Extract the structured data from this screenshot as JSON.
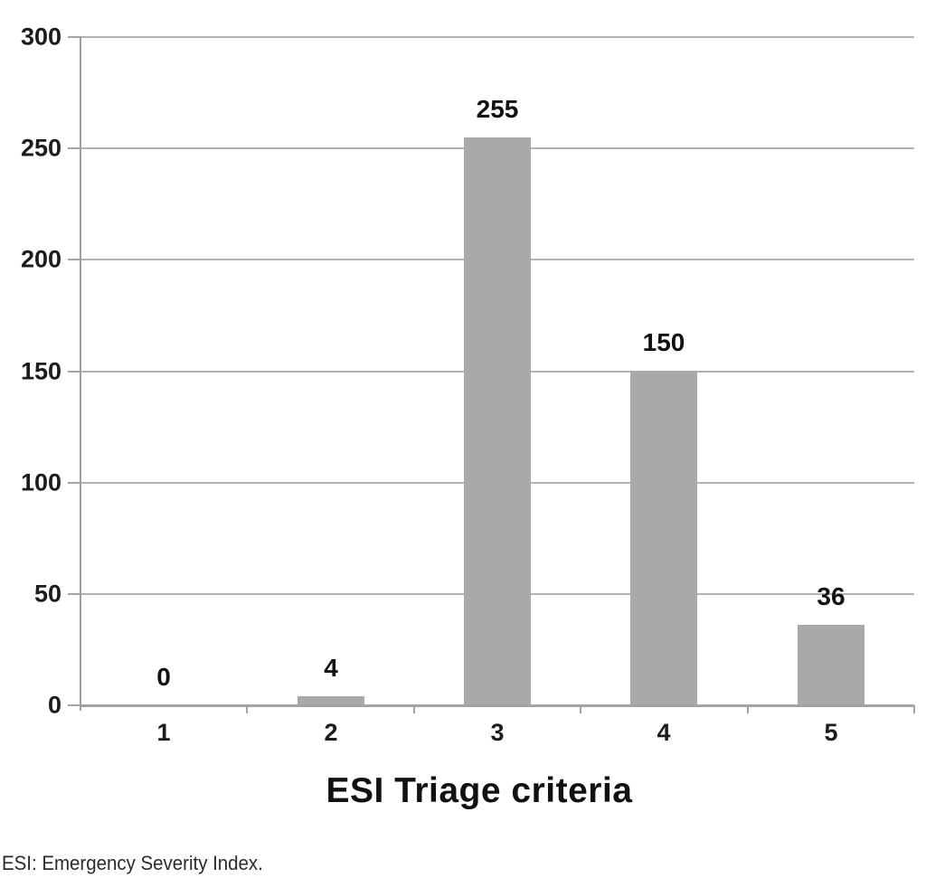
{
  "figure": {
    "background_color": "#ffffff",
    "bar_color": "#a9a9a9",
    "grid_color": "#b2b2b2",
    "axis_color": "#a3a3a3",
    "text_color": "#111111"
  },
  "chart_data": {
    "type": "bar",
    "categories": [
      "1",
      "2",
      "3",
      "4",
      "5"
    ],
    "values": [
      0,
      4,
      255,
      150,
      36
    ],
    "value_labels": [
      "0",
      "4",
      "255",
      "150",
      "36"
    ],
    "title": "",
    "xlabel": "ESI Triage criteria",
    "ylabel": "",
    "ylim": [
      0,
      300
    ],
    "yticks": [
      0,
      50,
      100,
      150,
      200,
      250,
      300
    ],
    "grid": "horizontal",
    "legend": "none",
    "series_color": "#a9a9a9"
  },
  "footnote": "ESI: Emergency Severity Index."
}
